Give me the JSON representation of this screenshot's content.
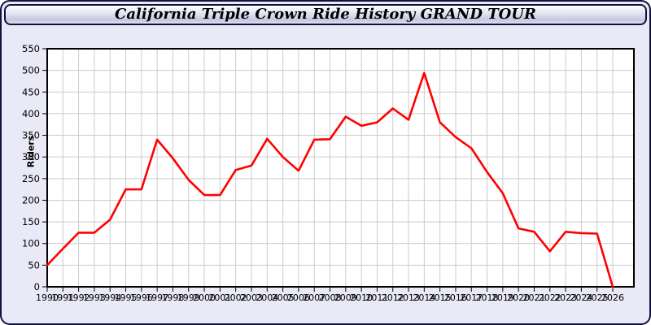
{
  "window": {
    "title": "California Triple Crown Ride History GRAND TOUR"
  },
  "colors": {
    "line": "#ff0000",
    "grid": "#cccccc",
    "plot_background": "#ffffff",
    "panel_background": "#e9e9f7",
    "axis": "#000000",
    "tick_label": "#000000"
  },
  "chart_data": {
    "type": "line",
    "title": "California Triple Crown Ride History GRAND TOUR",
    "xlabel": "",
    "ylabel": "Riders",
    "ylim": [
      0,
      550
    ],
    "ytick_step": 50,
    "grid": true,
    "legend_position": "none",
    "x": [
      1990,
      1991,
      1992,
      1993,
      1994,
      1995,
      1996,
      1997,
      1998,
      1999,
      2000,
      2001,
      2002,
      2003,
      2004,
      2005,
      2006,
      2007,
      2008,
      2009,
      2010,
      2011,
      2012,
      2013,
      2014,
      2015,
      2016,
      2017,
      2018,
      2019,
      2020,
      2021,
      2022,
      2023,
      2024,
      2025,
      2026
    ],
    "series": [
      {
        "name": "Riders",
        "values": [
          50,
          88,
          125,
          125,
          155,
          225,
          225,
          340,
          297,
          247,
          212,
          212,
          270,
          280,
          342,
          300,
          268,
          340,
          341,
          393,
          372,
          380,
          412,
          386,
          494,
          380,
          346,
          320,
          265,
          216,
          135,
          127,
          82,
          127,
          124,
          123,
          0
        ]
      }
    ]
  }
}
